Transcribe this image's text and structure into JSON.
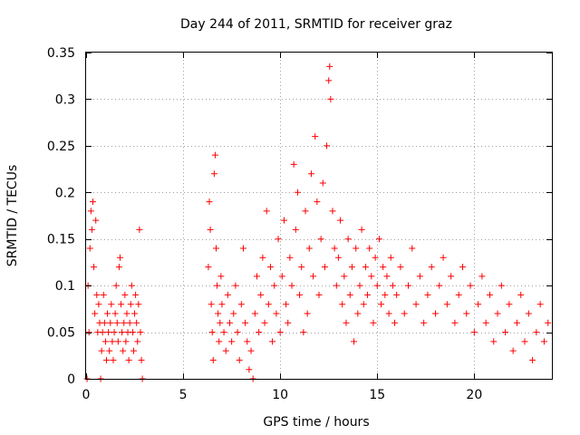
{
  "chart_data": {
    "type": "scatter",
    "title": "Day 244 of 2011, SRMTID for receiver graz",
    "xlabel": "GPS time / hours",
    "ylabel": "SRMTID / TECUs",
    "xlim": [
      0,
      24
    ],
    "ylim": [
      0,
      0.35
    ],
    "x_ticks": [
      0,
      5,
      10,
      15,
      20
    ],
    "x_tick_labels": [
      "0",
      "5",
      "10",
      "15",
      "20"
    ],
    "y_ticks": [
      0,
      0.05,
      0.1,
      0.15,
      0.2,
      0.25,
      0.3,
      0.35
    ],
    "y_tick_labels": [
      "0",
      "0.05",
      "0.1",
      "0.15",
      "0.2",
      "0.25",
      "0.3",
      "0.35"
    ],
    "grid": true,
    "marker": "plus",
    "color": "#ff0000",
    "series": [
      {
        "name": "SRMTID",
        "points": [
          [
            0.05,
            0.0
          ],
          [
            0.1,
            0.1
          ],
          [
            0.15,
            0.05
          ],
          [
            0.2,
            0.14
          ],
          [
            0.25,
            0.18
          ],
          [
            0.3,
            0.16
          ],
          [
            0.35,
            0.19
          ],
          [
            0.4,
            0.12
          ],
          [
            0.45,
            0.07
          ],
          [
            0.5,
            0.17
          ],
          [
            0.55,
            0.09
          ],
          [
            0.6,
            0.05
          ],
          [
            0.65,
            0.08
          ],
          [
            0.7,
            0.06
          ],
          [
            0.75,
            0.0
          ],
          [
            0.8,
            0.03
          ],
          [
            0.85,
            0.05
          ],
          [
            0.9,
            0.09
          ],
          [
            0.95,
            0.06
          ],
          [
            1.0,
            0.04
          ],
          [
            1.05,
            0.02
          ],
          [
            1.1,
            0.07
          ],
          [
            1.15,
            0.05
          ],
          [
            1.2,
            0.03
          ],
          [
            1.25,
            0.06
          ],
          [
            1.3,
            0.08
          ],
          [
            1.35,
            0.04
          ],
          [
            1.4,
            0.02
          ],
          [
            1.45,
            0.05
          ],
          [
            1.5,
            0.07
          ],
          [
            1.55,
            0.1
          ],
          [
            1.6,
            0.06
          ],
          [
            1.65,
            0.04
          ],
          [
            1.7,
            0.12
          ],
          [
            1.75,
            0.13
          ],
          [
            1.8,
            0.08
          ],
          [
            1.85,
            0.05
          ],
          [
            1.9,
            0.03
          ],
          [
            1.95,
            0.06
          ],
          [
            2.0,
            0.09
          ],
          [
            2.05,
            0.04
          ],
          [
            2.1,
            0.07
          ],
          [
            2.15,
            0.05
          ],
          [
            2.2,
            0.02
          ],
          [
            2.25,
            0.06
          ],
          [
            2.3,
            0.08
          ],
          [
            2.35,
            0.1
          ],
          [
            2.4,
            0.05
          ],
          [
            2.45,
            0.03
          ],
          [
            2.5,
            0.07
          ],
          [
            2.55,
            0.09
          ],
          [
            2.6,
            0.06
          ],
          [
            2.65,
            0.04
          ],
          [
            2.7,
            0.08
          ],
          [
            2.75,
            0.16
          ],
          [
            2.8,
            0.05
          ],
          [
            2.85,
            0.02
          ],
          [
            2.9,
            0.0
          ],
          [
            6.3,
            0.12
          ],
          [
            6.35,
            0.19
          ],
          [
            6.4,
            0.16
          ],
          [
            6.45,
            0.08
          ],
          [
            6.5,
            0.05
          ],
          [
            6.55,
            0.02
          ],
          [
            6.6,
            0.22
          ],
          [
            6.65,
            0.24
          ],
          [
            6.7,
            0.14
          ],
          [
            6.75,
            0.1
          ],
          [
            6.8,
            0.07
          ],
          [
            6.85,
            0.04
          ],
          [
            6.9,
            0.06
          ],
          [
            6.95,
            0.11
          ],
          [
            7.0,
            0.08
          ],
          [
            7.1,
            0.05
          ],
          [
            7.2,
            0.03
          ],
          [
            7.3,
            0.09
          ],
          [
            7.4,
            0.06
          ],
          [
            7.5,
            0.04
          ],
          [
            7.6,
            0.07
          ],
          [
            7.7,
            0.1
          ],
          [
            7.8,
            0.05
          ],
          [
            7.9,
            0.02
          ],
          [
            8.0,
            0.08
          ],
          [
            8.1,
            0.14
          ],
          [
            8.2,
            0.06
          ],
          [
            8.3,
            0.04
          ],
          [
            8.4,
            0.01
          ],
          [
            8.5,
            0.03
          ],
          [
            8.6,
            0.0
          ],
          [
            8.7,
            0.07
          ],
          [
            8.8,
            0.11
          ],
          [
            8.9,
            0.05
          ],
          [
            9.0,
            0.09
          ],
          [
            9.1,
            0.13
          ],
          [
            9.2,
            0.06
          ],
          [
            9.3,
            0.18
          ],
          [
            9.4,
            0.08
          ],
          [
            9.5,
            0.12
          ],
          [
            9.6,
            0.04
          ],
          [
            9.7,
            0.1
          ],
          [
            9.8,
            0.07
          ],
          [
            9.9,
            0.15
          ],
          [
            10.0,
            0.05
          ],
          [
            10.1,
            0.11
          ],
          [
            10.2,
            0.17
          ],
          [
            10.3,
            0.08
          ],
          [
            10.4,
            0.06
          ],
          [
            10.5,
            0.13
          ],
          [
            10.6,
            0.1
          ],
          [
            10.7,
            0.23
          ],
          [
            10.8,
            0.16
          ],
          [
            10.9,
            0.2
          ],
          [
            11.0,
            0.09
          ],
          [
            11.1,
            0.12
          ],
          [
            11.2,
            0.05
          ],
          [
            11.3,
            0.18
          ],
          [
            11.4,
            0.07
          ],
          [
            11.5,
            0.14
          ],
          [
            11.6,
            0.22
          ],
          [
            11.7,
            0.11
          ],
          [
            11.8,
            0.26
          ],
          [
            11.9,
            0.19
          ],
          [
            12.0,
            0.09
          ],
          [
            12.1,
            0.15
          ],
          [
            12.2,
            0.21
          ],
          [
            12.3,
            0.12
          ],
          [
            12.4,
            0.25
          ],
          [
            12.5,
            0.32
          ],
          [
            12.55,
            0.335
          ],
          [
            12.6,
            0.3
          ],
          [
            12.7,
            0.18
          ],
          [
            12.8,
            0.14
          ],
          [
            12.9,
            0.1
          ],
          [
            13.0,
            0.13
          ],
          [
            13.1,
            0.17
          ],
          [
            13.2,
            0.08
          ],
          [
            13.3,
            0.11
          ],
          [
            13.4,
            0.06
          ],
          [
            13.5,
            0.15
          ],
          [
            13.6,
            0.09
          ],
          [
            13.7,
            0.12
          ],
          [
            13.8,
            0.04
          ],
          [
            13.9,
            0.14
          ],
          [
            14.0,
            0.07
          ],
          [
            14.1,
            0.1
          ],
          [
            14.2,
            0.16
          ],
          [
            14.3,
            0.08
          ],
          [
            14.4,
            0.12
          ],
          [
            14.5,
            0.09
          ],
          [
            14.6,
            0.14
          ],
          [
            14.7,
            0.11
          ],
          [
            14.8,
            0.06
          ],
          [
            14.9,
            0.13
          ],
          [
            15.0,
            0.1
          ],
          [
            15.1,
            0.15
          ],
          [
            15.2,
            0.08
          ],
          [
            15.3,
            0.12
          ],
          [
            15.4,
            0.09
          ],
          [
            15.5,
            0.11
          ],
          [
            15.6,
            0.07
          ],
          [
            15.7,
            0.13
          ],
          [
            15.8,
            0.1
          ],
          [
            15.9,
            0.06
          ],
          [
            16.0,
            0.09
          ],
          [
            16.2,
            0.12
          ],
          [
            16.4,
            0.07
          ],
          [
            16.6,
            0.1
          ],
          [
            16.8,
            0.14
          ],
          [
            17.0,
            0.08
          ],
          [
            17.2,
            0.11
          ],
          [
            17.4,
            0.06
          ],
          [
            17.6,
            0.09
          ],
          [
            17.8,
            0.12
          ],
          [
            18.0,
            0.07
          ],
          [
            18.2,
            0.1
          ],
          [
            18.4,
            0.13
          ],
          [
            18.6,
            0.08
          ],
          [
            18.8,
            0.11
          ],
          [
            19.0,
            0.06
          ],
          [
            19.2,
            0.09
          ],
          [
            19.4,
            0.12
          ],
          [
            19.6,
            0.07
          ],
          [
            19.8,
            0.1
          ],
          [
            20.0,
            0.05
          ],
          [
            20.2,
            0.08
          ],
          [
            20.4,
            0.11
          ],
          [
            20.6,
            0.06
          ],
          [
            20.8,
            0.09
          ],
          [
            21.0,
            0.04
          ],
          [
            21.2,
            0.07
          ],
          [
            21.4,
            0.1
          ],
          [
            21.6,
            0.05
          ],
          [
            21.8,
            0.08
          ],
          [
            22.0,
            0.03
          ],
          [
            22.2,
            0.06
          ],
          [
            22.4,
            0.09
          ],
          [
            22.6,
            0.04
          ],
          [
            22.8,
            0.07
          ],
          [
            23.0,
            0.02
          ],
          [
            23.2,
            0.05
          ],
          [
            23.4,
            0.08
          ],
          [
            23.6,
            0.04
          ],
          [
            23.8,
            0.06
          ]
        ]
      }
    ]
  }
}
